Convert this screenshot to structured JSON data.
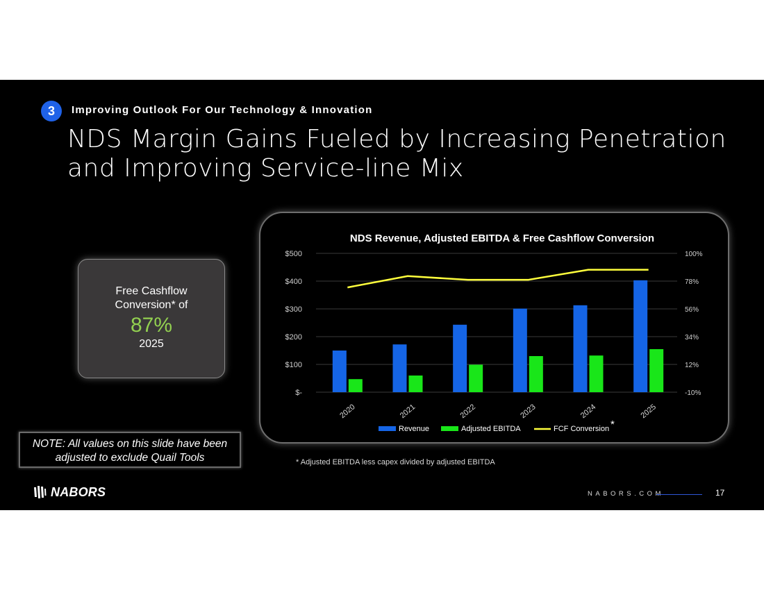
{
  "section": {
    "number": "3",
    "title": "Improving Outlook For Our Technology & Innovation"
  },
  "title": {
    "line1": "NDS Margin Gains Fueled by Increasing Penetration",
    "line2": "and Improving Service-line Mix"
  },
  "fcf_box": {
    "line1": "Free Cashflow",
    "line2": "Conversion* of",
    "value": "87%",
    "year": "2025",
    "value_color": "#92d050"
  },
  "note": {
    "line1": "NOTE: All values on this slide have been",
    "line2": "adjusted to exclude Quail Tools"
  },
  "footnote": "* Adjusted EBITDA less capex divided by adjusted EBITDA",
  "footer": {
    "logo": "NABORS",
    "site": "NABORS.COM",
    "page": "17"
  },
  "chart_data": {
    "type": "bar",
    "title": "NDS Revenue, Adjusted EBITDA & Free Cashflow Conversion",
    "categories": [
      "2020",
      "2021",
      "2022",
      "2023",
      "2024",
      "2025"
    ],
    "series": [
      {
        "name": "Revenue",
        "kind": "bar",
        "axis": "left",
        "color": "#1565e6",
        "values": [
          150,
          172,
          243,
          301,
          313,
          403
        ]
      },
      {
        "name": "Adjusted EBITDA",
        "kind": "bar",
        "axis": "left",
        "color": "#19e619",
        "values": [
          47,
          60,
          99,
          130,
          132,
          155
        ]
      },
      {
        "name": "FCF Conversion",
        "kind": "line",
        "axis": "right",
        "color": "#ffff3c",
        "values": [
          0.73,
          0.82,
          0.79,
          0.79,
          0.87,
          0.87
        ]
      }
    ],
    "y_left": {
      "ylim": [
        0,
        500
      ],
      "ticks": [
        0,
        100,
        200,
        300,
        400,
        500
      ],
      "tick_labels": [
        "$-",
        "$100",
        "$200",
        "$300",
        "$400",
        "$500"
      ]
    },
    "y_right": {
      "ticks": [
        "-10%",
        "12%",
        "34%",
        "56%",
        "78%",
        "100%"
      ]
    },
    "legend_labels": [
      "Revenue",
      "Adjusted EBITDA",
      "FCF Conversion"
    ],
    "legend_suffix": "*",
    "grid": true
  }
}
